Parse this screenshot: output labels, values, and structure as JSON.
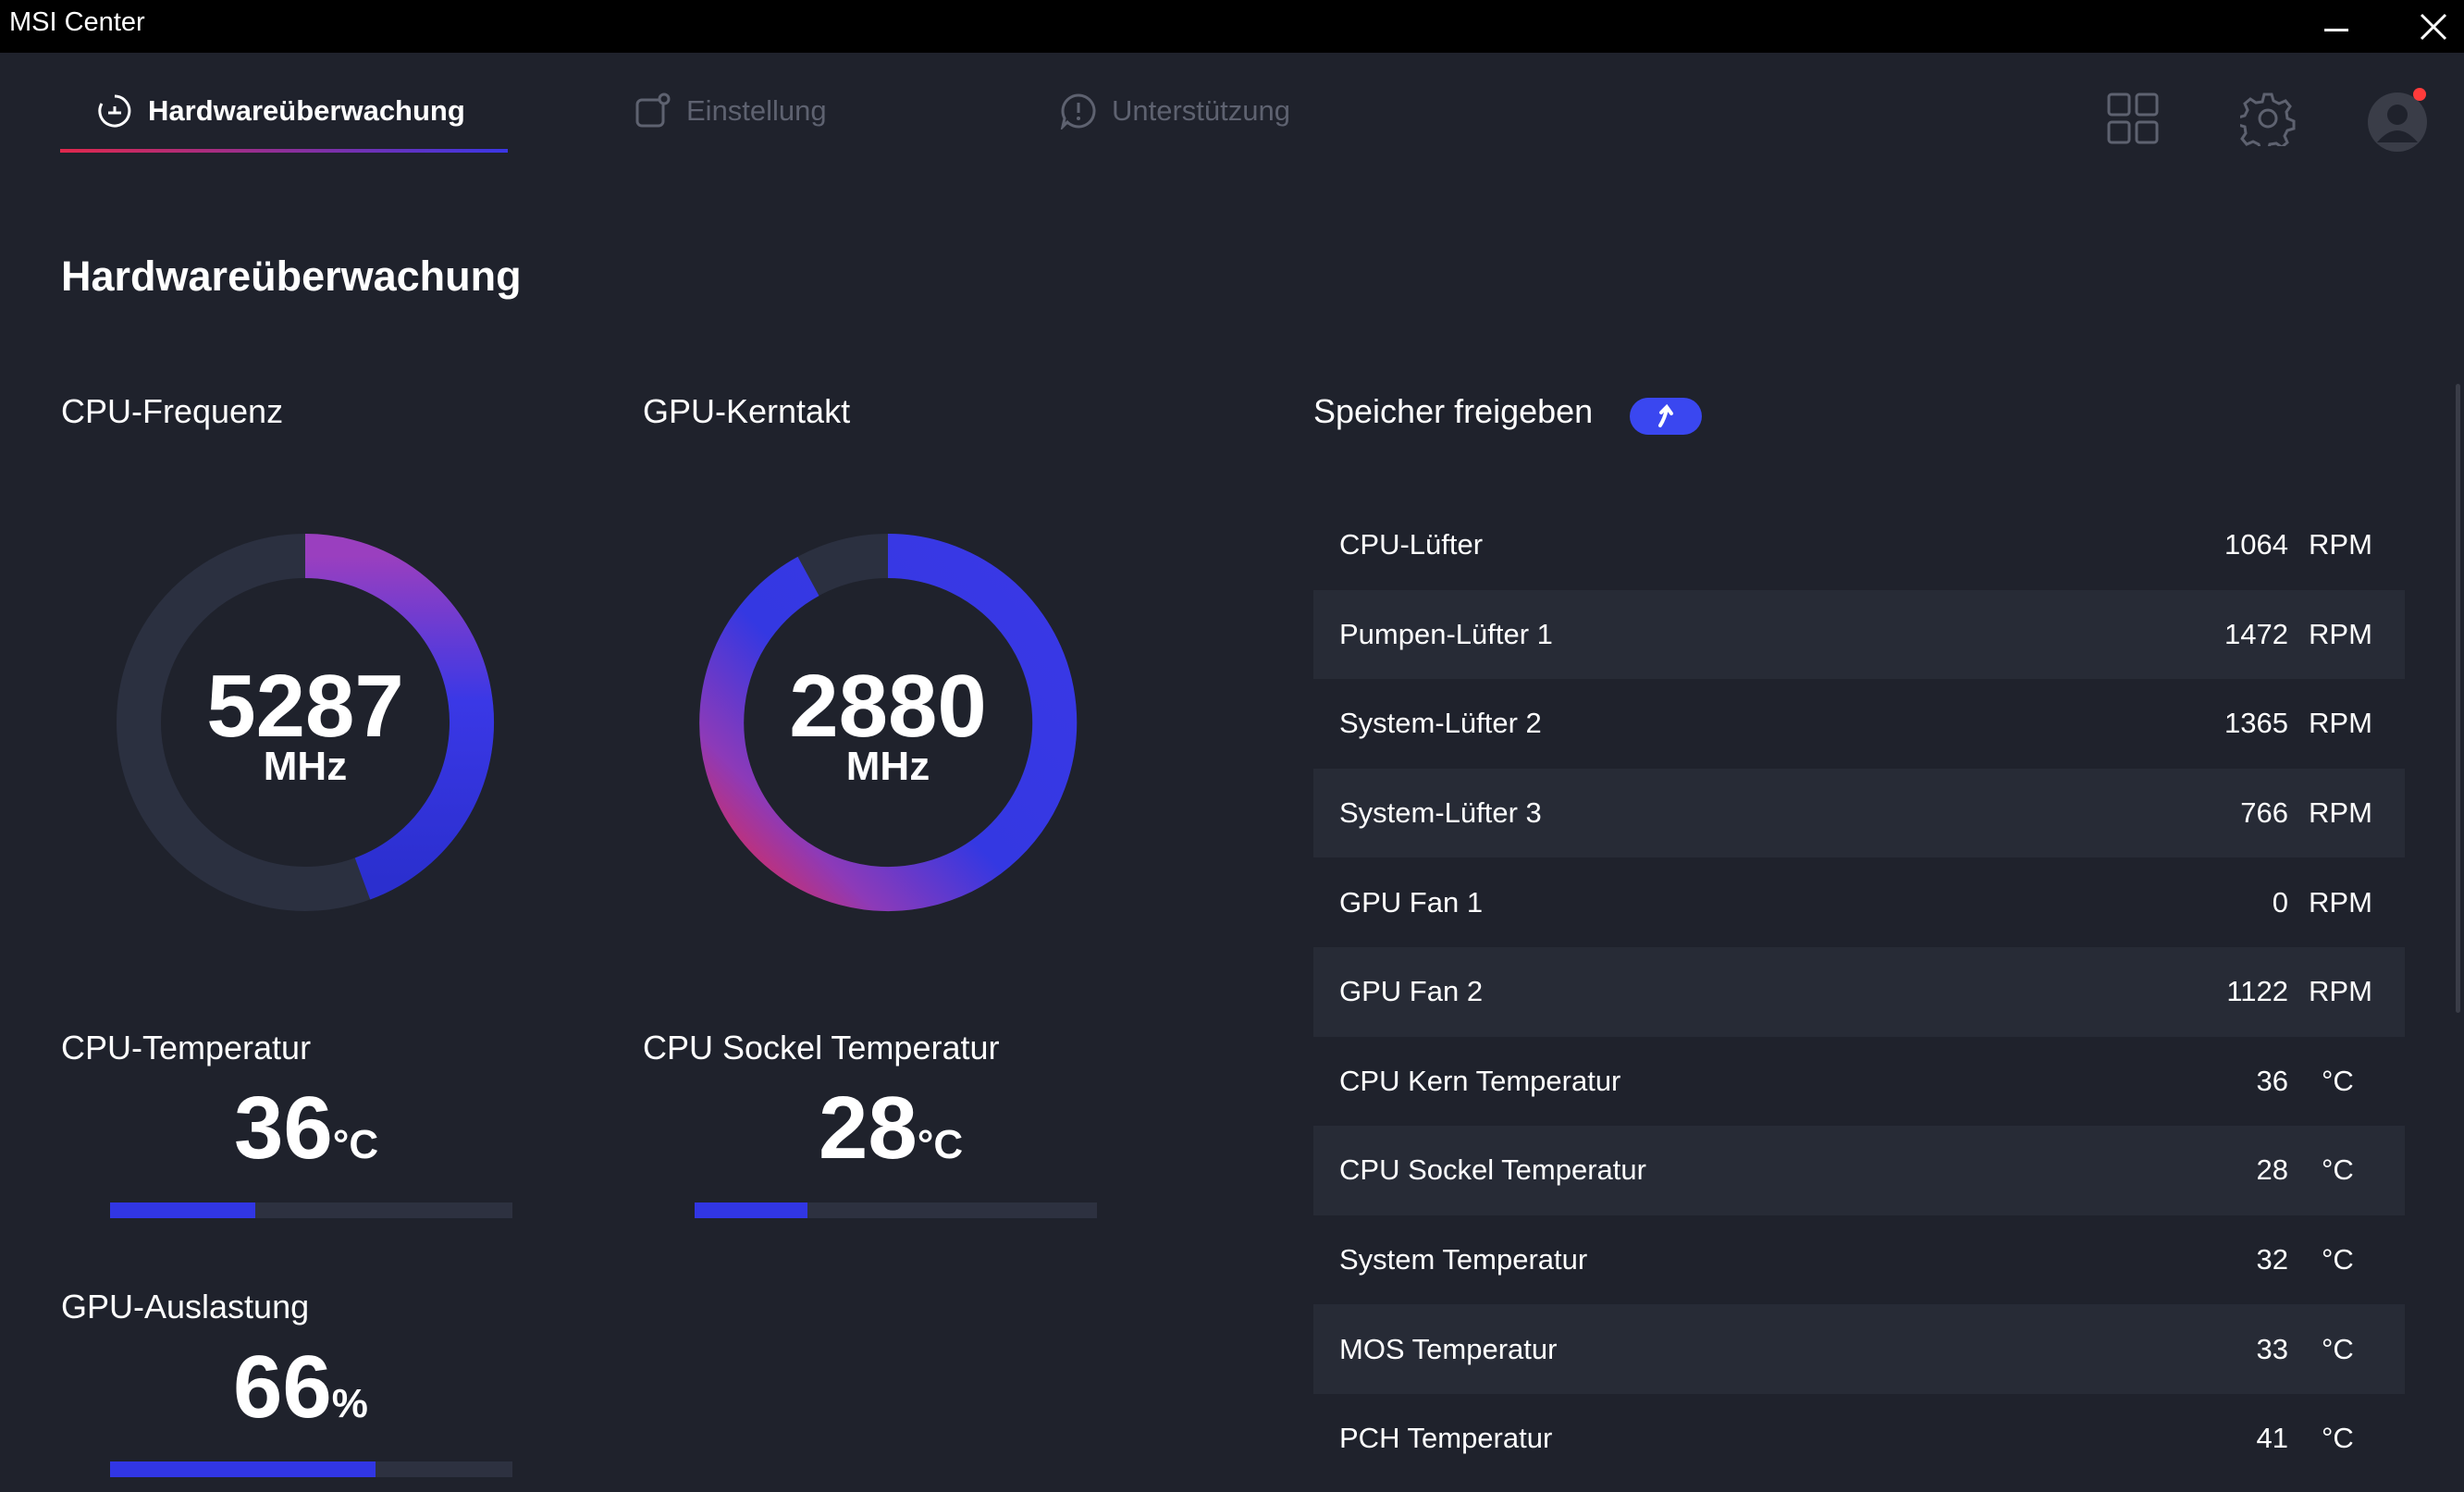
{
  "window": {
    "title": "MSI Center"
  },
  "nav": {
    "tabs": [
      {
        "label": "Hardwareüberwachung"
      },
      {
        "label": "Einstellung"
      },
      {
        "label": "Unterstützung"
      }
    ]
  },
  "page": {
    "title": "Hardwareüberwachung"
  },
  "cpu_freq": {
    "label": "CPU-Frequenz",
    "value": "5287",
    "unit": "MHz"
  },
  "gpu_clock": {
    "label": "GPU-Kerntakt",
    "value": "2880",
    "unit": "MHz"
  },
  "cpu_temp": {
    "label": "CPU-Temperatur",
    "value": "36",
    "unit": "°C",
    "bar_fraction": 0.36
  },
  "socket_temp": {
    "label": "CPU Sockel Temperatur",
    "value": "28",
    "unit": "°C",
    "bar_fraction": 0.28
  },
  "gpu_load": {
    "label": "GPU-Auslastung",
    "value": "66",
    "unit": "%",
    "bar_fraction": 0.66
  },
  "memory": {
    "label": "Speicher freigeben"
  },
  "sensors": [
    {
      "name": "CPU-Lüfter",
      "value": "1064",
      "unit": "RPM"
    },
    {
      "name": "Pumpen-Lüfter 1",
      "value": "1472",
      "unit": "RPM"
    },
    {
      "name": "System-Lüfter 2",
      "value": "1365",
      "unit": "RPM"
    },
    {
      "name": "System-Lüfter 3",
      "value": "766",
      "unit": "RPM"
    },
    {
      "name": "GPU Fan 1",
      "value": "0",
      "unit": "RPM"
    },
    {
      "name": "GPU Fan 2",
      "value": "1122",
      "unit": "RPM"
    },
    {
      "name": "CPU Kern Temperatur",
      "value": "36",
      "unit": "°C"
    },
    {
      "name": "CPU Sockel Temperatur",
      "value": "28",
      "unit": "°C"
    },
    {
      "name": "System Temperatur",
      "value": "32",
      "unit": "°C"
    },
    {
      "name": "MOS Temperatur",
      "value": "33",
      "unit": "°C"
    },
    {
      "name": "PCH Temperatur",
      "value": "41",
      "unit": "°C"
    }
  ],
  "colors": {
    "accent_blue": "#3136e4",
    "accent_red": "#e0284c",
    "notification": "#ff3b3b"
  }
}
